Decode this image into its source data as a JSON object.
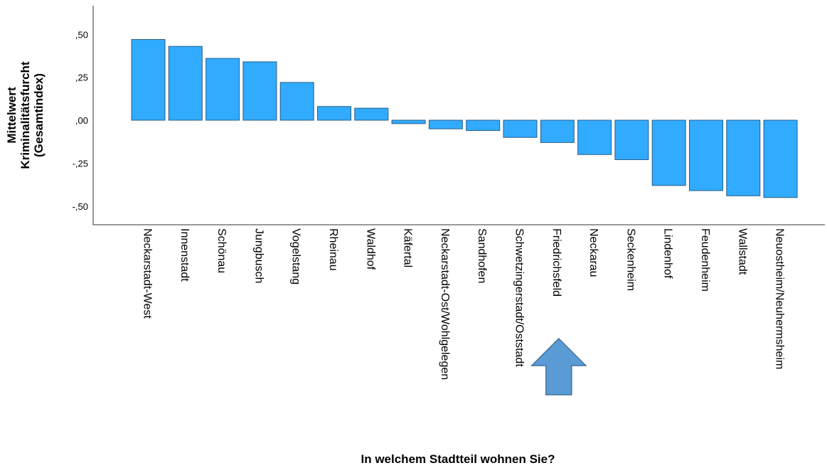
{
  "chart_data": {
    "type": "bar",
    "xlabel": "In welchem Stadtteil wohnen Sie?",
    "ylabel_lines": [
      "Mittelwert",
      "Kriminalitätsfurcht",
      "(Gesamtindex)"
    ],
    "ylim": [
      -0.6,
      0.68
    ],
    "yticks": [
      0.5,
      0.25,
      0.0,
      -0.25,
      -0.5
    ],
    "ytick_labels": [
      ",50",
      ",25",
      ",00",
      "-,25",
      "-,50"
    ],
    "grid": false,
    "categories": [
      "Neckarstadt-West",
      "Innenstadt",
      "Schönau",
      "Jungbusch",
      "Vogelstang",
      "Rheinau",
      "Waldhof",
      "Käfertal",
      "Neckarstadt-Ost/Wohlgelegen",
      "Sandhofen",
      "Schwetzingerstadt/Oststadt",
      "Friedrichsfeld",
      "Neckarau",
      "Seckenheim",
      "Lindenhof",
      "Feudenheim",
      "Wallstadt",
      "Neuostheim/Neuhermsheim"
    ],
    "values": [
      0.47,
      0.43,
      0.36,
      0.34,
      0.22,
      0.08,
      0.07,
      -0.02,
      -0.05,
      -0.06,
      -0.1,
      -0.13,
      -0.2,
      -0.23,
      -0.38,
      -0.41,
      -0.44,
      -0.45
    ],
    "bar_color": "#31abff",
    "bar_edge_color": "#2a5e86",
    "highlight": {
      "category": "Friedrichsfeld",
      "marker": "up-arrow",
      "color": "#5b9bd5"
    }
  }
}
